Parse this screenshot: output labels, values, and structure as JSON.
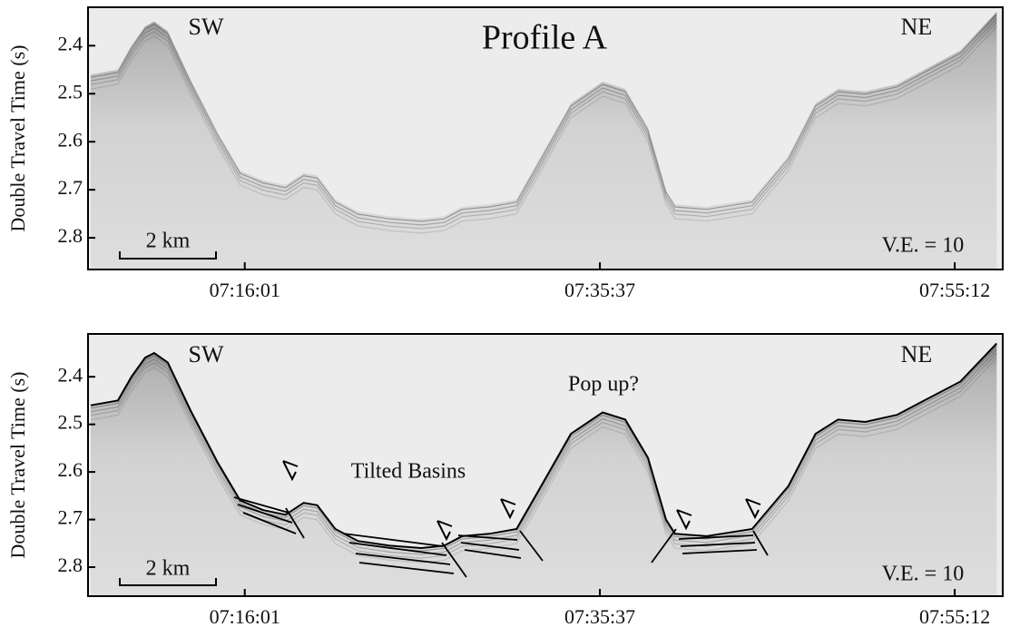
{
  "chart_data": [
    {
      "type": "seismic",
      "title": "Profile A",
      "ylabel": "Double Travel Time (s)",
      "annotations": [
        "SW",
        "NE",
        "2 km",
        "V.E. = 10"
      ],
      "x": [
        25651,
        25741,
        25786,
        25831,
        25861,
        25906,
        25981,
        26071,
        26146,
        26221,
        26296,
        26356,
        26401,
        26461,
        26536,
        26641,
        26746,
        26821,
        26881,
        26971,
        27061,
        27151,
        27241,
        27346,
        27421,
        27496,
        27556,
        27586,
        27691,
        27841,
        27961,
        28051,
        28126,
        28216,
        28321,
        28411,
        28531,
        28651
      ],
      "values": [
        2.46,
        2.45,
        2.4,
        2.36,
        2.35,
        2.37,
        2.47,
        2.58,
        2.66,
        2.68,
        2.69,
        2.665,
        2.67,
        2.72,
        2.745,
        2.755,
        2.76,
        2.755,
        2.735,
        2.73,
        2.72,
        2.62,
        2.52,
        2.475,
        2.49,
        2.57,
        2.7,
        2.73,
        2.735,
        2.72,
        2.63,
        2.52,
        2.49,
        2.495,
        2.48,
        2.45,
        2.41,
        2.33
      ],
      "xlim": [
        25642,
        28671
      ],
      "xticks": [
        {
          "value": 26161,
          "label": "07:16:01"
        },
        {
          "value": 27337,
          "label": "07:35:37"
        },
        {
          "value": 28512,
          "label": "07:55:12"
        }
      ],
      "ylim": [
        2.32,
        2.866
      ],
      "yticks": [
        2.4,
        2.5,
        2.6,
        2.7,
        2.8
      ],
      "y_inverted": true,
      "interpreted": false
    },
    {
      "type": "seismic",
      "ylabel": "Double Travel Time (s)",
      "annotations": [
        "SW",
        "NE",
        "Pop up?",
        "Tilted Basins",
        "2 km",
        "V.E. = 10"
      ],
      "x": [
        25651,
        25741,
        25786,
        25831,
        25861,
        25906,
        25981,
        26071,
        26146,
        26221,
        26296,
        26356,
        26401,
        26461,
        26536,
        26641,
        26746,
        26821,
        26881,
        26971,
        27061,
        27151,
        27241,
        27346,
        27421,
        27496,
        27556,
        27586,
        27691,
        27841,
        27961,
        28051,
        28126,
        28216,
        28321,
        28411,
        28531,
        28651
      ],
      "values": [
        2.46,
        2.45,
        2.4,
        2.36,
        2.35,
        2.37,
        2.47,
        2.58,
        2.66,
        2.68,
        2.69,
        2.665,
        2.67,
        2.72,
        2.745,
        2.755,
        2.76,
        2.755,
        2.735,
        2.73,
        2.72,
        2.62,
        2.52,
        2.475,
        2.49,
        2.57,
        2.7,
        2.73,
        2.735,
        2.72,
        2.63,
        2.52,
        2.49,
        2.495,
        2.48,
        2.45,
        2.41,
        2.33
      ],
      "xlim": [
        25642,
        28671
      ],
      "xticks": [
        {
          "value": 26161,
          "label": "07:16:01"
        },
        {
          "value": 27337,
          "label": "07:35:37"
        },
        {
          "value": 28512,
          "label": "07:55:12"
        }
      ],
      "ylim": [
        2.31,
        2.861
      ],
      "yticks": [
        2.4,
        2.5,
        2.6,
        2.7,
        2.8
      ],
      "y_inverted": true,
      "interpreted": true
    }
  ]
}
